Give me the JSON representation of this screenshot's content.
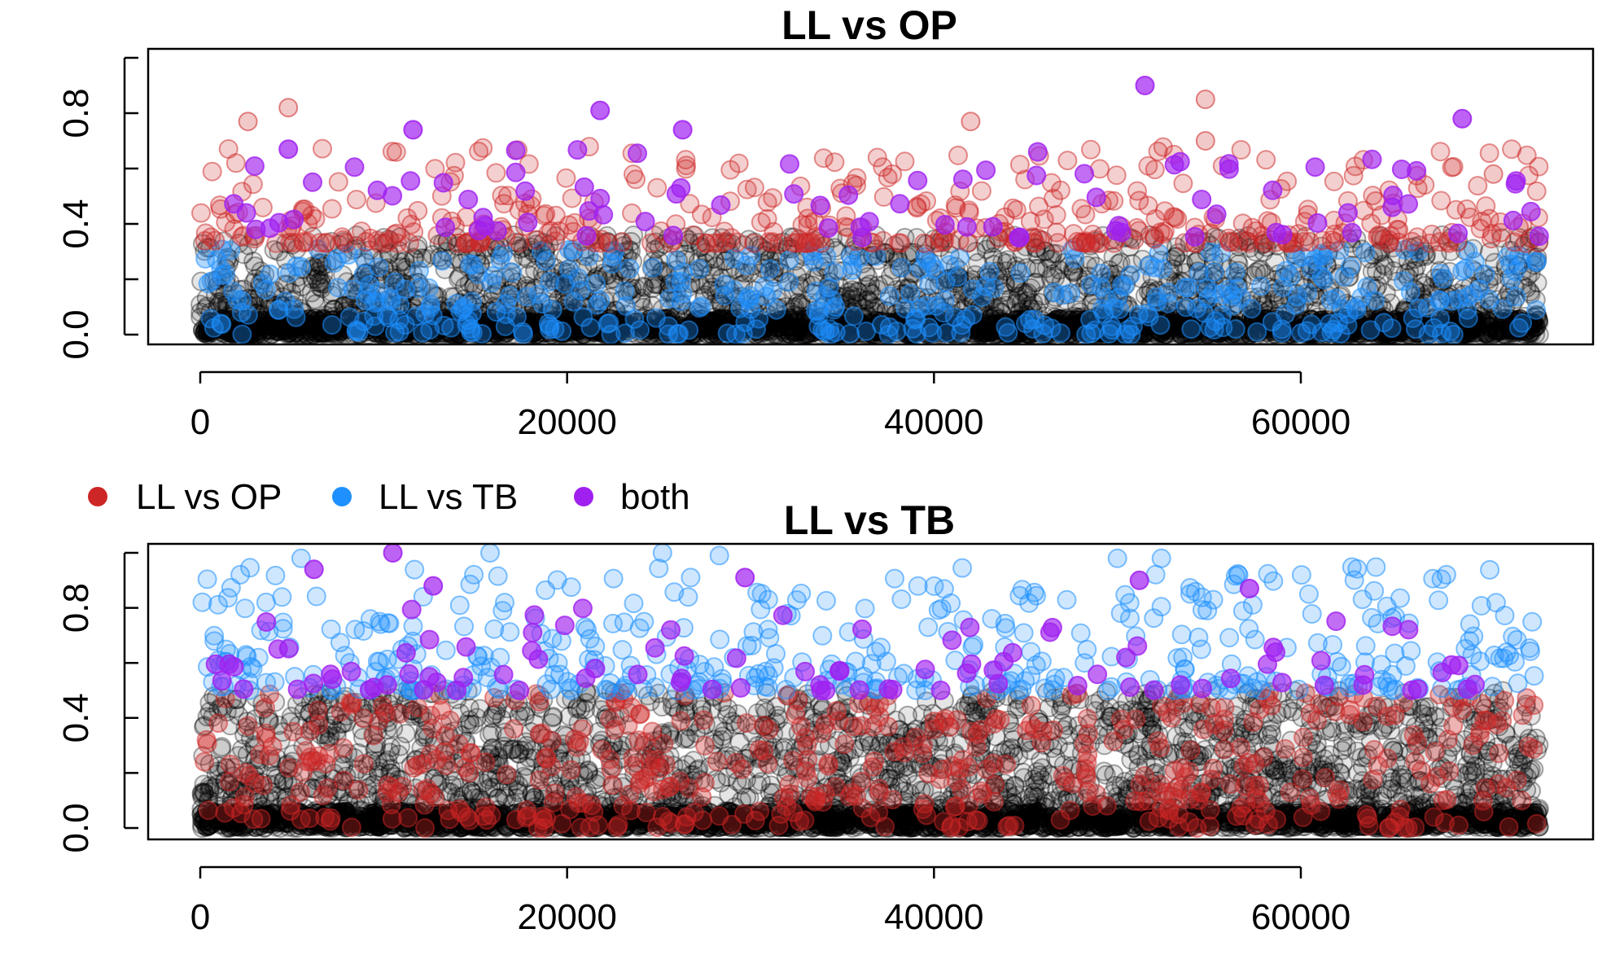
{
  "chart_data": [
    {
      "type": "scatter",
      "title": "LL vs OP",
      "xlabel": "",
      "ylabel": "",
      "xlim": [
        -4000,
        75000
      ],
      "ylim": [
        -0.03,
        1.05
      ],
      "x_ticks": [
        0,
        20000,
        40000,
        60000
      ],
      "x_tick_labels": [
        "0",
        "20000",
        "40000",
        "60000"
      ],
      "y_ticks": [
        0.0,
        0.2,
        0.4,
        0.6,
        0.8,
        1.0
      ],
      "y_tick_labels": [
        "0.0",
        "",
        "0.4",
        "",
        "0.8",
        ""
      ],
      "x_range": [
        0,
        73000
      ],
      "series": [
        {
          "key": "background",
          "color": "#000000",
          "y_range": [
            0.0,
            0.36
          ],
          "description": "dense points across all x"
        },
        {
          "key": "ll_vs_op",
          "color": "#CD2626",
          "y_range": [
            0.32,
            0.85
          ],
          "notable_points": [
            [
              4800,
              0.82
            ],
            [
              2600,
              0.77
            ],
            [
              42000,
              0.77
            ],
            [
              54800,
              0.85
            ],
            [
              54800,
              0.7
            ],
            [
              70500,
              0.58
            ]
          ]
        },
        {
          "key": "ll_vs_tb",
          "color": "#1E90FF",
          "y_range": [
            0.0,
            0.33
          ]
        },
        {
          "key": "both",
          "color": "#A020F0",
          "y_range": [
            0.35,
            0.9
          ],
          "notable_points": [
            [
              51500,
              0.9
            ],
            [
              21800,
              0.81
            ],
            [
              68800,
              0.78
            ],
            [
              26300,
              0.74
            ],
            [
              11600,
              0.74
            ],
            [
              4800,
              0.67
            ]
          ]
        }
      ]
    },
    {
      "type": "scatter",
      "title": "LL vs TB",
      "xlabel": "",
      "ylabel": "",
      "xlim": [
        -4000,
        75000
      ],
      "ylim": [
        -0.03,
        1.05
      ],
      "x_ticks": [
        0,
        20000,
        40000,
        60000
      ],
      "x_tick_labels": [
        "0",
        "20000",
        "40000",
        "60000"
      ],
      "y_ticks": [
        0.0,
        0.2,
        0.4,
        0.6,
        0.8,
        1.0
      ],
      "y_tick_labels": [
        "0.0",
        "",
        "0.4",
        "",
        "0.8",
        ""
      ],
      "x_range": [
        0,
        73000
      ],
      "series": [
        {
          "key": "background",
          "color": "#000000",
          "y_range": [
            0.0,
            0.5
          ],
          "description": "dense points across all x"
        },
        {
          "key": "ll_vs_op",
          "color": "#CD2626",
          "y_range": [
            0.0,
            0.5
          ]
        },
        {
          "key": "ll_vs_tb",
          "color": "#1E90FF",
          "y_range": [
            0.5,
            1.0
          ],
          "notable_points": [
            [
              15800,
              1.0
            ],
            [
              25200,
              1.0
            ],
            [
              28300,
              0.99
            ],
            [
              5500,
              0.98
            ],
            [
              50000,
              0.98
            ],
            [
              52400,
              0.98
            ]
          ]
        },
        {
          "key": "both",
          "color": "#A020F0",
          "y_range": [
            0.5,
            1.0
          ],
          "notable_points": [
            [
              10500,
              1.0
            ],
            [
              6200,
              0.94
            ],
            [
              29700,
              0.91
            ],
            [
              51200,
              0.9
            ],
            [
              12700,
              0.88
            ],
            [
              57200,
              0.87
            ]
          ]
        }
      ]
    }
  ],
  "legend": {
    "placement": "between panels, left",
    "items": [
      {
        "key": "ll_vs_op",
        "label": "LL vs OP",
        "color": "#CD2626"
      },
      {
        "key": "ll_vs_tb",
        "label": "LL vs TB",
        "color": "#1E90FF"
      },
      {
        "key": "both",
        "label": "both",
        "color": "#A020F0"
      }
    ]
  }
}
